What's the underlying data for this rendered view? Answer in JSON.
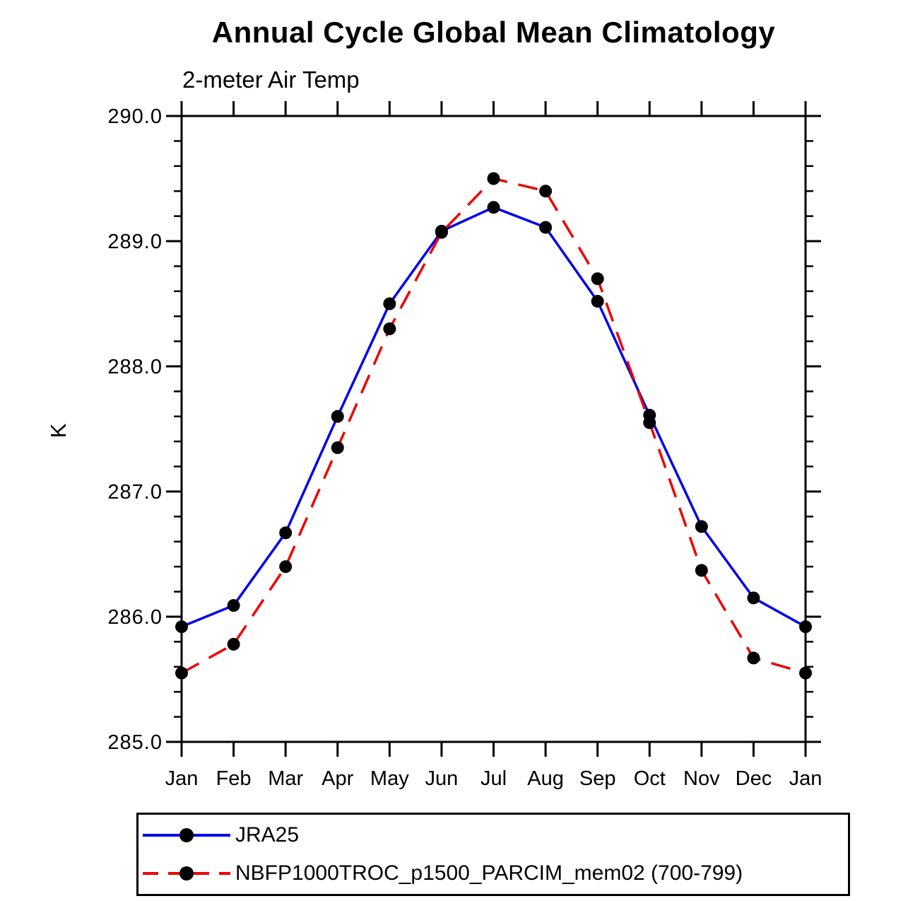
{
  "chart_data": {
    "type": "line",
    "title": "Annual Cycle Global Mean Climatology",
    "subtitle": "2-meter Air Temp",
    "ylabel": "K",
    "x_tick_labels": [
      "Jan",
      "Feb",
      "Mar",
      "Apr",
      "May",
      "Jun",
      "Jul",
      "Aug",
      "Sep",
      "Oct",
      "Nov",
      "Dec",
      "Jan"
    ],
    "ylim": [
      285.0,
      290.0
    ],
    "y_major_ticks": [
      290.0,
      289.0,
      288.0,
      287.0,
      286.0,
      285.0
    ],
    "y_tick_labels": [
      "290.0",
      "289.0",
      "288.0",
      "287.0",
      "286.0",
      "285.0"
    ],
    "y_minor_step": 0.2,
    "grid": false,
    "legend_position": "below-left",
    "series": [
      {
        "name": "JRA25",
        "color": "#0000ee",
        "style": "solid",
        "marker": "filled-circle",
        "marker_color": "#000000",
        "values": [
          285.92,
          286.09,
          286.67,
          287.6,
          288.5,
          289.08,
          289.27,
          289.11,
          288.52,
          287.61,
          286.72,
          286.15,
          285.92
        ]
      },
      {
        "name": "NBFP1000TROC_p1500_PARCIM_mem02 (700-799)",
        "color": "#ee0000",
        "style": "dashed",
        "marker": "filled-circle",
        "marker_color": "#000000",
        "values": [
          285.55,
          285.78,
          286.4,
          287.35,
          288.3,
          289.07,
          289.5,
          289.4,
          288.7,
          287.55,
          286.37,
          285.67,
          285.55
        ]
      }
    ]
  },
  "colors": {
    "background": "#ffffff",
    "axis": "#000000",
    "series_jra25": "#0000ee",
    "series_nbfp": "#ee0000",
    "marker": "#000000"
  }
}
